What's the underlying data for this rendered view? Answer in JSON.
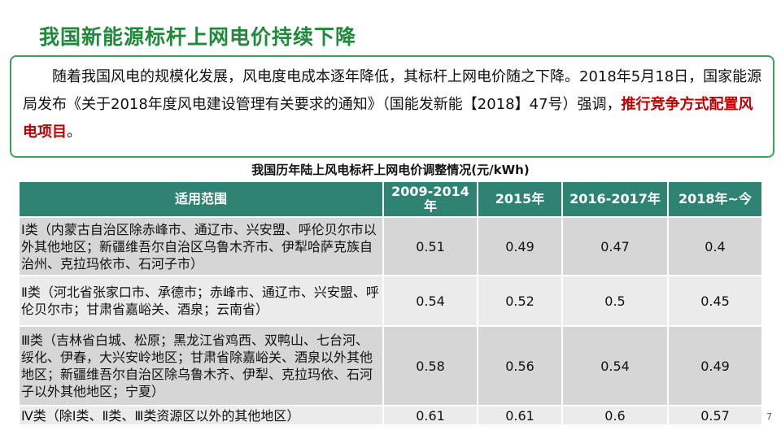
{
  "header": {
    "title": "我国新能源标杆上网电价持续下降"
  },
  "intro": {
    "text": "随着我国风电的规模化发展，风电度电成本逐年降低，其标杆上网电价随之下降。2018年5月18日，国家能源局发布《关于2018年度风电建设管理有关要求的通知》（国能发新能【2018】47号）强调，",
    "highlight": "推行竞争方式配置风电项目",
    "end": "。"
  },
  "table": {
    "caption": "我国历年陆上风电标杆上网电价调整情况(元/kWh)",
    "header": [
      "适用范围",
      "2009-2014年",
      "2015年",
      "2016-2017年",
      "2018年~今"
    ],
    "rows": [
      [
        "Ⅰ类（内蒙古自治区除赤峰市、通辽市、兴安盟、呼伦贝尔市以外其他地区；新疆维吾尔自治区乌鲁木齐市、伊犁哈萨克族自治州、克拉玛依市、石河子市）",
        0.51,
        0.49,
        0.47,
        0.4
      ],
      [
        "Ⅱ类（河北省张家口市、承德市；赤峰市、通辽市、兴安盟、呼伦贝尔市；甘肃省嘉峪关、酒泉；云南省）",
        0.54,
        0.52,
        0.5,
        0.45
      ],
      [
        "Ⅲ类（吉林省白城、松原；黑龙江省鸡西、双鸭山、七台河、绥化、伊春，大兴安岭地区；甘肃省除嘉峪关、酒泉以外其他地区；新疆维吾尔自治区除乌鲁木齐、伊犁、克拉玛依、石河子以外其他地区；宁夏）",
        0.58,
        0.56,
        0.54,
        0.49
      ],
      [
        "Ⅳ类（除Ⅰ类、Ⅱ类、Ⅲ类资源区以外的其他地区）",
        0.61,
        0.61,
        0.6,
        0.57
      ]
    ]
  },
  "footer": {
    "page": "7"
  }
}
